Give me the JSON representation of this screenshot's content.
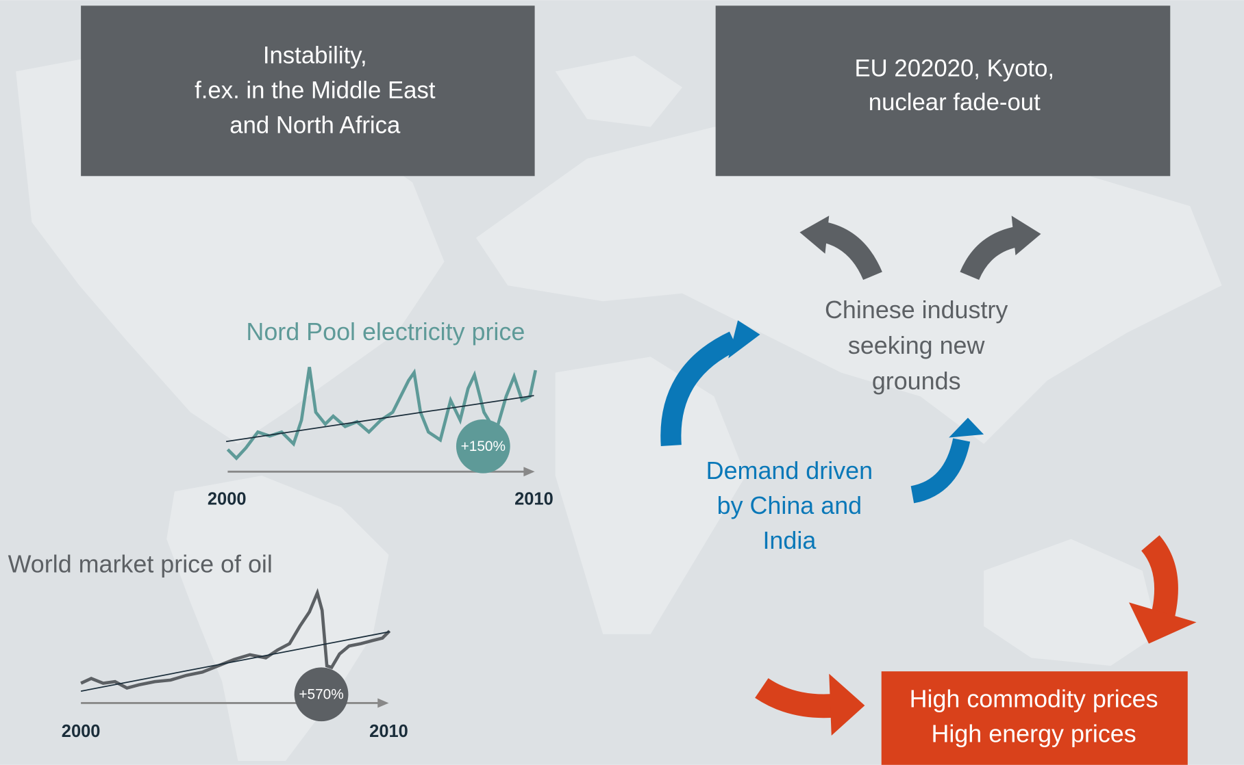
{
  "boxes": [
    {
      "lines": [
        "Instability,",
        "f.ex. in the Middle East",
        "and North Africa"
      ]
    },
    {
      "lines": [
        "EU 202020, Kyoto,",
        "nuclear fade-out"
      ]
    }
  ],
  "charts": [
    {
      "title": "Nord Pool electricity price",
      "start": "2000",
      "end": "2010",
      "change": "+150%"
    },
    {
      "title": "World market price of oil",
      "start": "2000",
      "end": "2010",
      "change": "+570%"
    }
  ],
  "china": [
    "Chinese industry",
    "seeking new",
    "grounds"
  ],
  "demand": [
    "Demand driven",
    "by China and",
    "India"
  ],
  "result": [
    "High commodity prices",
    "High energy prices"
  ]
}
